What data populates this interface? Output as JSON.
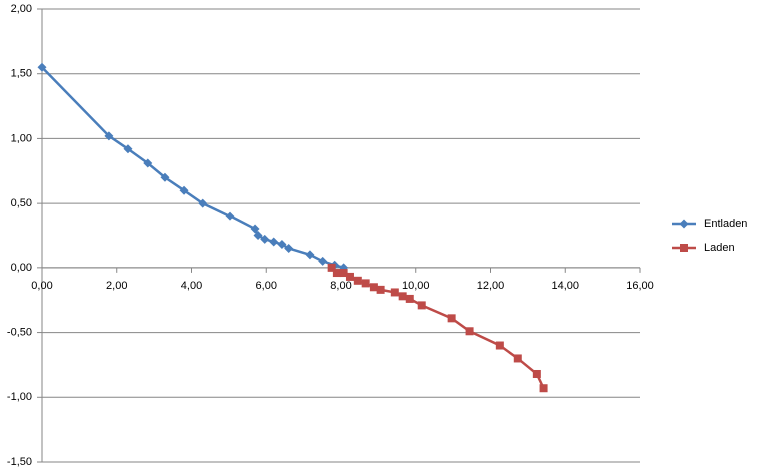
{
  "chart_data": {
    "type": "scatter-line",
    "xlim": [
      0,
      16
    ],
    "xticks": [
      {
        "value": 0,
        "label": "0,00"
      },
      {
        "value": 2,
        "label": "2,00"
      },
      {
        "value": 4,
        "label": "4,00"
      },
      {
        "value": 6,
        "label": "6,00"
      },
      {
        "value": 8,
        "label": "8,00"
      },
      {
        "value": 10,
        "label": "10,00"
      },
      {
        "value": 12,
        "label": "12,00"
      },
      {
        "value": 14,
        "label": "14,00"
      },
      {
        "value": 16,
        "label": "16,00"
      }
    ],
    "ylim": [
      -1.5,
      2
    ],
    "yticks": [
      {
        "value": -1.5,
        "label": "-1,50"
      },
      {
        "value": -1,
        "label": "-1,00"
      },
      {
        "value": -0.5,
        "label": "-0,50"
      },
      {
        "value": 0,
        "label": "0,00"
      },
      {
        "value": 0.5,
        "label": "0,50"
      },
      {
        "value": 1,
        "label": "1,00"
      },
      {
        "value": 1.5,
        "label": "1,50"
      },
      {
        "value": 2,
        "label": "2,00"
      }
    ],
    "grid": true,
    "legend": "right",
    "series": [
      {
        "name": "Entladen",
        "color": "#4a7ebb",
        "marker": "diamond",
        "x": [
          0,
          1.79,
          2.3,
          2.83,
          3.29,
          3.8,
          4.3,
          5.03,
          5.7,
          5.78,
          5.96,
          6.2,
          6.42,
          6.6,
          7.17,
          7.51,
          7.83,
          8.07
        ],
        "values": [
          1.55,
          1.02,
          0.92,
          0.81,
          0.7,
          0.6,
          0.5,
          0.4,
          0.3,
          0.25,
          0.22,
          0.2,
          0.18,
          0.15,
          0.1,
          0.05,
          0.02,
          0
        ]
      },
      {
        "name": "Laden",
        "color": "#be4b48",
        "marker": "square",
        "x": [
          7.75,
          7.89,
          8.07,
          8.24,
          8.45,
          8.66,
          8.88,
          9.06,
          9.44,
          9.65,
          9.84,
          10.16,
          10.96,
          11.44,
          12.25,
          12.73,
          13.24,
          13.42
        ],
        "values": [
          0,
          -0.04,
          -0.04,
          -0.07,
          -0.1,
          -0.12,
          -0.15,
          -0.17,
          -0.19,
          -0.22,
          -0.24,
          -0.29,
          -0.39,
          -0.49,
          -0.6,
          -0.7,
          -0.82,
          -0.93
        ]
      }
    ]
  }
}
